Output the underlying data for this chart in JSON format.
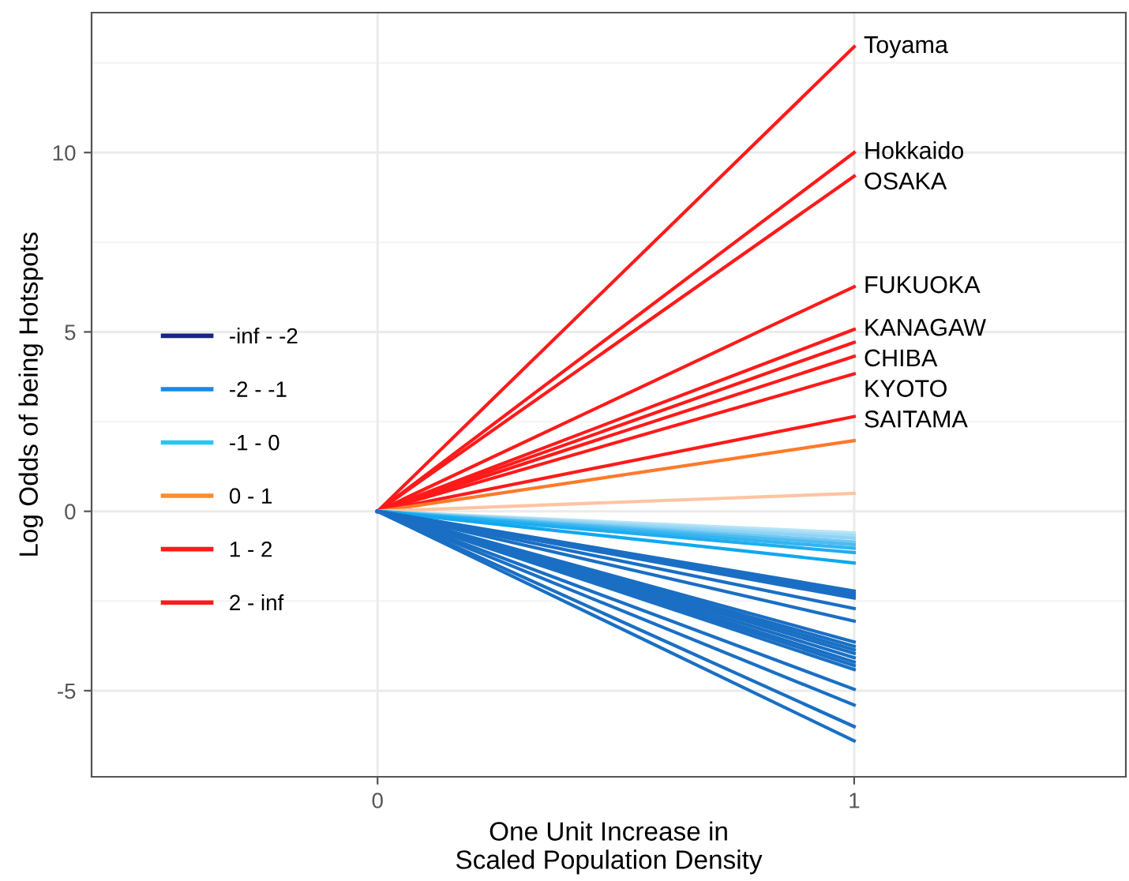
{
  "chart_data": {
    "type": "line",
    "xlabel": "One Unit Increase in\nScaled Population Density",
    "ylabel": "Log Odds of being Hotspots",
    "x": [
      0,
      1
    ],
    "xlim": [
      -0.6,
      1.57
    ],
    "ylim": [
      -7.4,
      13.9
    ],
    "xticks": [
      0,
      1
    ],
    "yticks": [
      -5,
      0,
      5,
      10
    ],
    "grid": true,
    "legend": "left",
    "marker": "none",
    "line_style": "solid",
    "annotations": [
      "Toyama",
      "Hokkaido",
      "OSAKA",
      "FUKUOKA",
      "KANAGAW",
      "CHIBA",
      "KYOTO",
      "SAITAMA"
    ],
    "series": [
      {
        "name": "-inf - -2",
        "color": "#1a237e",
        "values": [
          null,
          null
        ]
      },
      {
        "name": "-2 - -1",
        "color": "#1e88e5",
        "values": [
          null,
          null
        ]
      },
      {
        "name": "-1 - 0",
        "color": "#29c5f6",
        "values": [
          null,
          null
        ]
      },
      {
        "name": "0 - 1",
        "color": "#ff8c2a",
        "values": [
          null,
          null
        ]
      },
      {
        "name": "1 - 2",
        "color": "#ff1a1a",
        "values": [
          null,
          null
        ]
      },
      {
        "name": "2 - inf",
        "color": "#ff1a1a",
        "values": [
          null,
          null
        ]
      },
      {
        "color": "#ff1a1a",
        "values": [
          0,
          12.95
        ]
      },
      {
        "color": "#ff1a1a",
        "values": [
          0,
          10.0
        ]
      },
      {
        "color": "#ff1a1a",
        "values": [
          0,
          9.34
        ]
      },
      {
        "color": "#ff1a1a",
        "values": [
          0,
          6.26
        ]
      },
      {
        "color": "#ff1a1a",
        "values": [
          0,
          5.07
        ]
      },
      {
        "color": "#ff1a1a",
        "values": [
          0,
          4.71
        ]
      },
      {
        "color": "#ff1a1a",
        "values": [
          0,
          4.32
        ]
      },
      {
        "color": "#ff1a1a",
        "values": [
          0,
          3.83
        ]
      },
      {
        "color": "#ff1a1a",
        "values": [
          0,
          2.64
        ]
      },
      {
        "color": "#ff7a29",
        "values": [
          0,
          1.97
        ]
      },
      {
        "color": "#ffc4a3",
        "values": [
          0,
          0.5
        ]
      },
      {
        "color": "#b8e4f7",
        "values": [
          0,
          -0.6
        ]
      },
      {
        "color": "#a6dcf5",
        "values": [
          0,
          -0.67
        ]
      },
      {
        "color": "#8fd3f5",
        "values": [
          0,
          -0.75
        ]
      },
      {
        "color": "#6fc8f2",
        "values": [
          0,
          -0.85
        ]
      },
      {
        "color": "#4dbbf0",
        "values": [
          0,
          -0.93
        ]
      },
      {
        "color": "#33b4f0",
        "values": [
          0,
          -1.03
        ]
      },
      {
        "color": "#1fadf0",
        "values": [
          0,
          -1.15
        ]
      },
      {
        "color": "#10a8f0",
        "values": [
          0,
          -1.44
        ]
      },
      {
        "color": "#1a6fc4",
        "values": [
          0,
          -2.22
        ]
      },
      {
        "color": "#1a6fc4",
        "values": [
          0,
          -2.29
        ]
      },
      {
        "color": "#1a6fc4",
        "values": [
          0,
          -2.35
        ]
      },
      {
        "color": "#1a6fc4",
        "values": [
          0,
          -2.42
        ]
      },
      {
        "color": "#1a6fc4",
        "values": [
          0,
          -2.71
        ]
      },
      {
        "color": "#1a6fc4",
        "values": [
          0,
          -3.06
        ]
      },
      {
        "color": "#1a6fc4",
        "values": [
          0,
          -3.64
        ]
      },
      {
        "color": "#1a6fc4",
        "values": [
          0,
          -3.76
        ]
      },
      {
        "color": "#1a6fc4",
        "values": [
          0,
          -3.86
        ]
      },
      {
        "color": "#1a6fc4",
        "values": [
          0,
          -3.96
        ]
      },
      {
        "color": "#1a6fc4",
        "values": [
          0,
          -4.08
        ]
      },
      {
        "color": "#1a6fc4",
        "values": [
          0,
          -4.2
        ]
      },
      {
        "color": "#1a6fc4",
        "values": [
          0,
          -4.3
        ]
      },
      {
        "color": "#1a6fc4",
        "values": [
          0,
          -4.41
        ]
      },
      {
        "color": "#1a6fc4",
        "values": [
          0,
          -4.96
        ]
      },
      {
        "color": "#1a6fc4",
        "values": [
          0,
          -5.4
        ]
      },
      {
        "color": "#1a6fc4",
        "values": [
          0,
          -6.0
        ]
      },
      {
        "color": "#1a6fc4",
        "values": [
          0,
          -6.4
        ]
      }
    ]
  }
}
